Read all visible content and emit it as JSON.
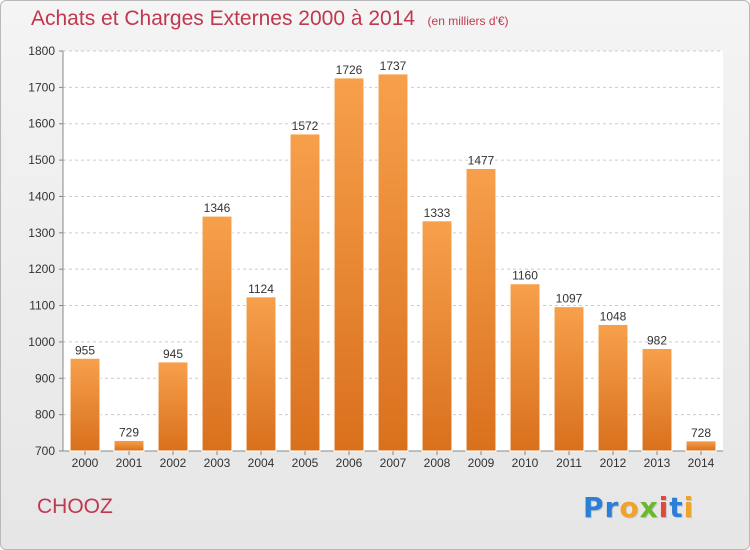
{
  "chart_data": {
    "type": "bar",
    "title": "Achats et Charges Externes 2000 à 2014",
    "unit_label": "(en milliers d'€)",
    "categories": [
      "2000",
      "2001",
      "2002",
      "2003",
      "2004",
      "2005",
      "2006",
      "2007",
      "2008",
      "2009",
      "2010",
      "2011",
      "2012",
      "2013",
      "2014"
    ],
    "values": [
      955,
      729,
      945,
      1346,
      1124,
      1572,
      1726,
      1737,
      1333,
      1477,
      1160,
      1097,
      1048,
      982,
      728
    ],
    "ylim": [
      700,
      1800
    ],
    "yticks": [
      700,
      800,
      900,
      1000,
      1100,
      1200,
      1300,
      1400,
      1500,
      1600,
      1700,
      1800
    ],
    "grid": true,
    "bar_color_top": "#f7a04c",
    "bar_color_bottom": "#d9701c"
  },
  "footer": {
    "city": "CHOOZ",
    "logo_letters": [
      {
        "char": "P",
        "color": "#2b7fd6"
      },
      {
        "char": "r",
        "color": "#2b7fd6"
      },
      {
        "char": "o",
        "color": "#f0a32a"
      },
      {
        "char": "x",
        "color": "#6cb82c"
      },
      {
        "char": "i",
        "color": "#e0483a"
      },
      {
        "char": "t",
        "color": "#2b7fd6"
      },
      {
        "char": "i",
        "color": "#f0a32a"
      }
    ]
  }
}
